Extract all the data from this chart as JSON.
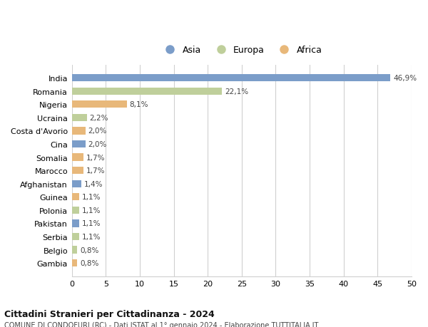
{
  "countries": [
    "India",
    "Romania",
    "Nigeria",
    "Ucraina",
    "Costa d'Avorio",
    "Cina",
    "Somalia",
    "Marocco",
    "Afghanistan",
    "Guinea",
    "Polonia",
    "Pakistan",
    "Serbia",
    "Belgio",
    "Gambia"
  ],
  "values": [
    46.9,
    22.1,
    8.1,
    2.2,
    2.0,
    2.0,
    1.7,
    1.7,
    1.4,
    1.1,
    1.1,
    1.1,
    1.1,
    0.8,
    0.8
  ],
  "labels": [
    "46,9%",
    "22,1%",
    "8,1%",
    "2,2%",
    "2,0%",
    "2,0%",
    "1,7%",
    "1,7%",
    "1,4%",
    "1,1%",
    "1,1%",
    "1,1%",
    "1,1%",
    "0,8%",
    "0,8%"
  ],
  "continents": [
    "Asia",
    "Europa",
    "Africa",
    "Europa",
    "Africa",
    "Asia",
    "Africa",
    "Africa",
    "Asia",
    "Africa",
    "Europa",
    "Asia",
    "Europa",
    "Europa",
    "Africa"
  ],
  "colors": {
    "Asia": "#7b9dc9",
    "Europa": "#bfcf9b",
    "Africa": "#e8b87a"
  },
  "legend_labels": [
    "Asia",
    "Europa",
    "Africa"
  ],
  "legend_colors": [
    "#7b9dc9",
    "#bfcf9b",
    "#e8b87a"
  ],
  "xlim": [
    0,
    50
  ],
  "xticks": [
    0,
    5,
    10,
    15,
    20,
    25,
    30,
    35,
    40,
    45,
    50
  ],
  "title": "Cittadini Stranieri per Cittadinanza - 2024",
  "subtitle": "COMUNE DI CONDOFURI (RC) - Dati ISTAT al 1° gennaio 2024 - Elaborazione TUTTITALIA.IT",
  "bg_color": "#ffffff",
  "grid_color": "#d0d0d0",
  "bar_height": 0.55
}
